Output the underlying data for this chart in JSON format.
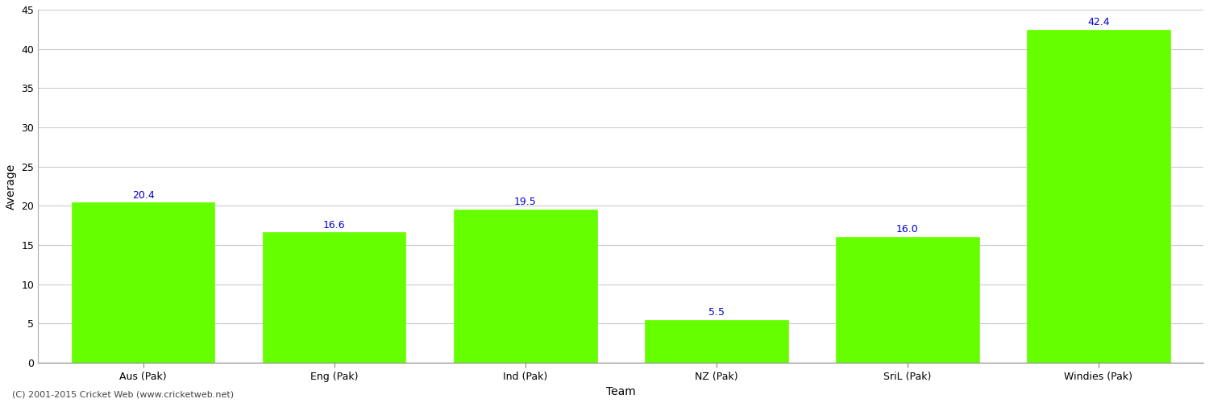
{
  "categories": [
    "Aus (Pak)",
    "Eng (Pak)",
    "Ind (Pak)",
    "NZ (Pak)",
    "SriL (Pak)",
    "Windies (Pak)"
  ],
  "values": [
    20.4,
    16.6,
    19.5,
    5.5,
    16.0,
    42.4
  ],
  "bar_color": "#66ff00",
  "bar_edge_color": "#66ff00",
  "label_color": "#0000cc",
  "xlabel": "Team",
  "ylabel": "Average",
  "ylim": [
    0,
    45
  ],
  "yticks": [
    0,
    5,
    10,
    15,
    20,
    25,
    30,
    35,
    40,
    45
  ],
  "background_color": "#ffffff",
  "grid_color": "#cccccc",
  "footer": "(C) 2001-2015 Cricket Web (www.cricketweb.net)",
  "label_fontsize": 9,
  "axis_label_fontsize": 10,
  "tick_fontsize": 9,
  "footer_fontsize": 8,
  "bar_width": 0.75
}
